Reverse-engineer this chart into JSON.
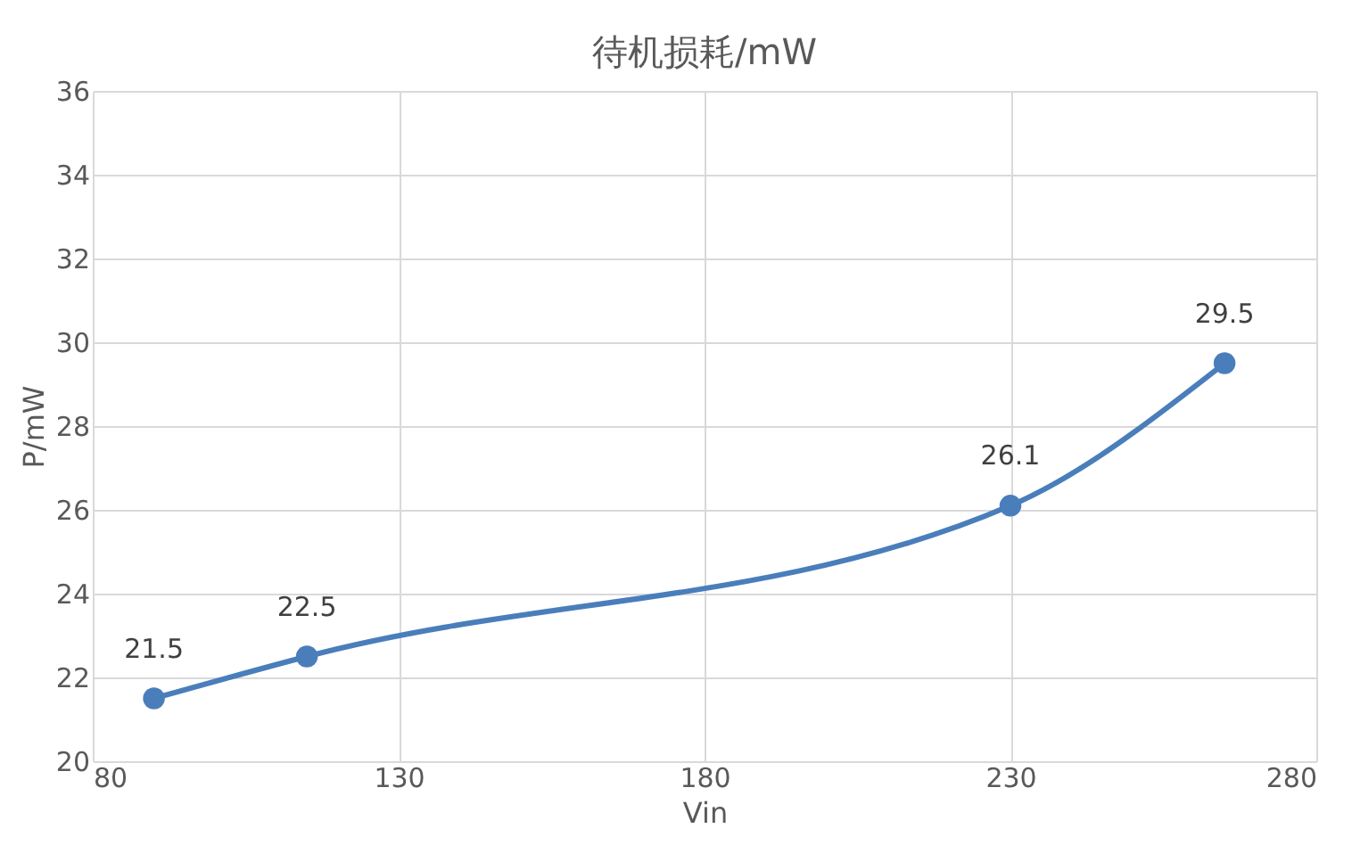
{
  "chart_data": {
    "type": "line",
    "title": "待机损耗/mW",
    "xlabel": "Vin",
    "ylabel": "P/mW",
    "x": [
      90,
      115,
      230,
      265
    ],
    "series": [
      {
        "color": "#4a7ebb",
        "values": [
          21.5,
          22.5,
          26.1,
          29.5
        ]
      }
    ],
    "xlim": [
      80,
      280
    ],
    "xticks": [
      80,
      130,
      180,
      230,
      280
    ],
    "ylim": [
      20,
      36
    ],
    "yticks": [
      20,
      22,
      24,
      26,
      28,
      30,
      32,
      34,
      36
    ],
    "grid": true,
    "marker": "circle",
    "line_style": "solid",
    "data_labels": true
  }
}
